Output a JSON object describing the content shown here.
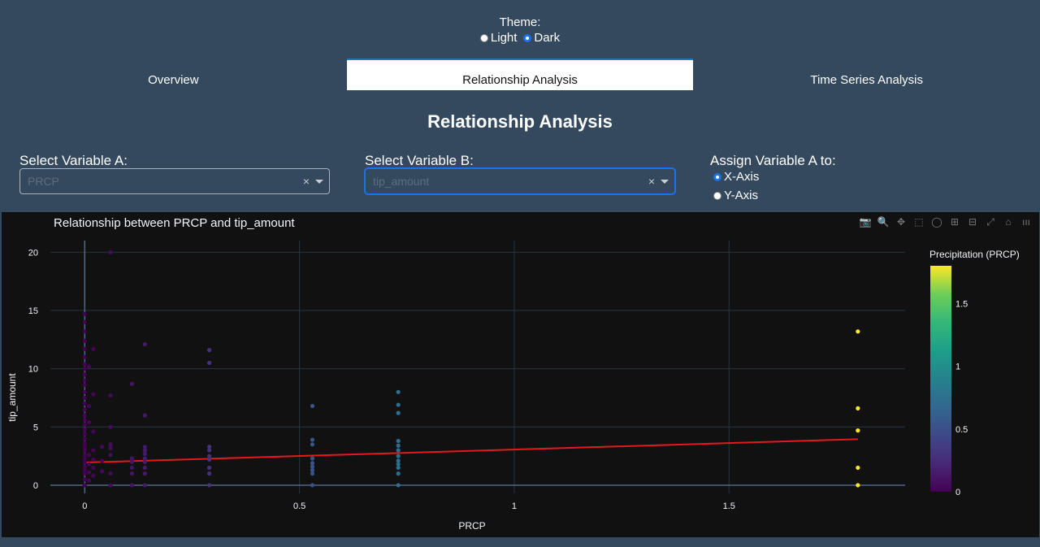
{
  "theme": {
    "title": "Theme:",
    "options": [
      "Light",
      "Dark"
    ],
    "selected": "Dark"
  },
  "tabs": [
    {
      "label": "Overview",
      "active": false
    },
    {
      "label": "Relationship Analysis",
      "active": true
    },
    {
      "label": "Time Series Analysis",
      "active": false
    }
  ],
  "page_title": "Relationship Analysis",
  "controls": {
    "var_a_label": "Select Variable A:",
    "var_a_value": "PRCP",
    "var_b_label": "Select Variable B:",
    "var_b_value": "tip_amount",
    "assign_label": "Assign Variable A to:",
    "assign_options": [
      "X-Axis",
      "Y-Axis"
    ],
    "assign_selected": "X-Axis",
    "clear_glyph": "×"
  },
  "toolbar_icons": [
    "camera-icon",
    "zoom-icon",
    "pan-icon",
    "box-select-icon",
    "lasso-icon",
    "zoom-in-icon",
    "zoom-out-icon",
    "autoscale-icon",
    "reset-axes-icon",
    "plotly-logo-icon"
  ],
  "colors": {
    "trend": "#e31a1c",
    "background": "#111111",
    "page": "#34495e"
  },
  "chart_data": {
    "type": "scatter",
    "title": "Relationship between PRCP and tip_amount",
    "xlabel": "PRCP",
    "ylabel": "tip_amount",
    "xlim": [
      -0.08,
      1.91
    ],
    "ylim": [
      -0.7,
      21
    ],
    "xticks": [
      0,
      0.5,
      1,
      1.5
    ],
    "xtick_labels": [
      "0",
      "0.5",
      "1",
      "1.5"
    ],
    "yticks": [
      0,
      5,
      10,
      15,
      20
    ],
    "ytick_labels": [
      "0",
      "5",
      "10",
      "15",
      "20"
    ],
    "colorbar": {
      "title": "Precipitation (PRCP)",
      "range": [
        0,
        1.8
      ],
      "ticks": [
        0,
        0.5,
        1,
        1.5
      ],
      "tick_labels": [
        "0",
        "0.5",
        "1",
        "1.5"
      ],
      "colorscale": "viridis"
    },
    "trendline": {
      "x": [
        0,
        1.8
      ],
      "y": [
        1.95,
        3.95
      ]
    },
    "points": [
      [
        0,
        0
      ],
      [
        0,
        0.5
      ],
      [
        0,
        1
      ],
      [
        0,
        1.3
      ],
      [
        0,
        1.6
      ],
      [
        0,
        2
      ],
      [
        0,
        2.3
      ],
      [
        0,
        2.6
      ],
      [
        0,
        3
      ],
      [
        0,
        3.3
      ],
      [
        0,
        3.6
      ],
      [
        0,
        4
      ],
      [
        0,
        4.4
      ],
      [
        0,
        4.8
      ],
      [
        0,
        5.2
      ],
      [
        0,
        5.6
      ],
      [
        0,
        6
      ],
      [
        0,
        6.5
      ],
      [
        0,
        7
      ],
      [
        0,
        7.5
      ],
      [
        0,
        8
      ],
      [
        0,
        8.6
      ],
      [
        0,
        9
      ],
      [
        0,
        9.5
      ],
      [
        0,
        10
      ],
      [
        0,
        10.4
      ],
      [
        0,
        11
      ],
      [
        0,
        11.7
      ],
      [
        0,
        12.4
      ],
      [
        0,
        13.2
      ],
      [
        0,
        14
      ],
      [
        0,
        14.7
      ],
      [
        0.01,
        0.4
      ],
      [
        0.01,
        1.1
      ],
      [
        0.01,
        1.8
      ],
      [
        0.01,
        2.6
      ],
      [
        0.01,
        5.4
      ],
      [
        0.01,
        6.8
      ],
      [
        0.01,
        10.2
      ],
      [
        0.02,
        0.8
      ],
      [
        0.02,
        1.5
      ],
      [
        0.02,
        2.2
      ],
      [
        0.02,
        3
      ],
      [
        0.02,
        4.6
      ],
      [
        0.02,
        7.8
      ],
      [
        0.02,
        11.7
      ],
      [
        0.04,
        1.2
      ],
      [
        0.04,
        2.1
      ],
      [
        0.04,
        3.3
      ],
      [
        0.06,
        0
      ],
      [
        0.06,
        1
      ],
      [
        0.06,
        2.6
      ],
      [
        0.06,
        3.2
      ],
      [
        0.06,
        3.5
      ],
      [
        0.06,
        5
      ],
      [
        0.06,
        7.7
      ],
      [
        0.06,
        20
      ],
      [
        0.11,
        0
      ],
      [
        0.11,
        1
      ],
      [
        0.11,
        1.5
      ],
      [
        0.11,
        2
      ],
      [
        0.11,
        2.3
      ],
      [
        0.11,
        8.7
      ],
      [
        0.14,
        0
      ],
      [
        0.14,
        1
      ],
      [
        0.14,
        1.5
      ],
      [
        0.14,
        2
      ],
      [
        0.14,
        2.3
      ],
      [
        0.14,
        2.7
      ],
      [
        0.14,
        3
      ],
      [
        0.14,
        3.3
      ],
      [
        0.14,
        6
      ],
      [
        0.14,
        12.1
      ],
      [
        0.29,
        0
      ],
      [
        0.29,
        1
      ],
      [
        0.29,
        1.5
      ],
      [
        0.29,
        2.2
      ],
      [
        0.29,
        2.5
      ],
      [
        0.29,
        3
      ],
      [
        0.29,
        3.3
      ],
      [
        0.29,
        10.5
      ],
      [
        0.29,
        11.6
      ],
      [
        0.53,
        0
      ],
      [
        0.53,
        1
      ],
      [
        0.53,
        1.3
      ],
      [
        0.53,
        1.6
      ],
      [
        0.53,
        1.9
      ],
      [
        0.53,
        2.3
      ],
      [
        0.53,
        3.5
      ],
      [
        0.53,
        3.9
      ],
      [
        0.53,
        6.8
      ],
      [
        0.73,
        0
      ],
      [
        0.73,
        1
      ],
      [
        0.73,
        1.5
      ],
      [
        0.73,
        1.8
      ],
      [
        0.73,
        2.1
      ],
      [
        0.73,
        2.5
      ],
      [
        0.73,
        3
      ],
      [
        0.73,
        3.4
      ],
      [
        0.73,
        3.8
      ],
      [
        0.73,
        6.2
      ],
      [
        0.73,
        6.9
      ],
      [
        0.73,
        8
      ],
      [
        1.8,
        0
      ],
      [
        1.8,
        1.5
      ],
      [
        1.8,
        4.7
      ],
      [
        1.8,
        6.6
      ],
      [
        1.8,
        13.2
      ]
    ]
  }
}
